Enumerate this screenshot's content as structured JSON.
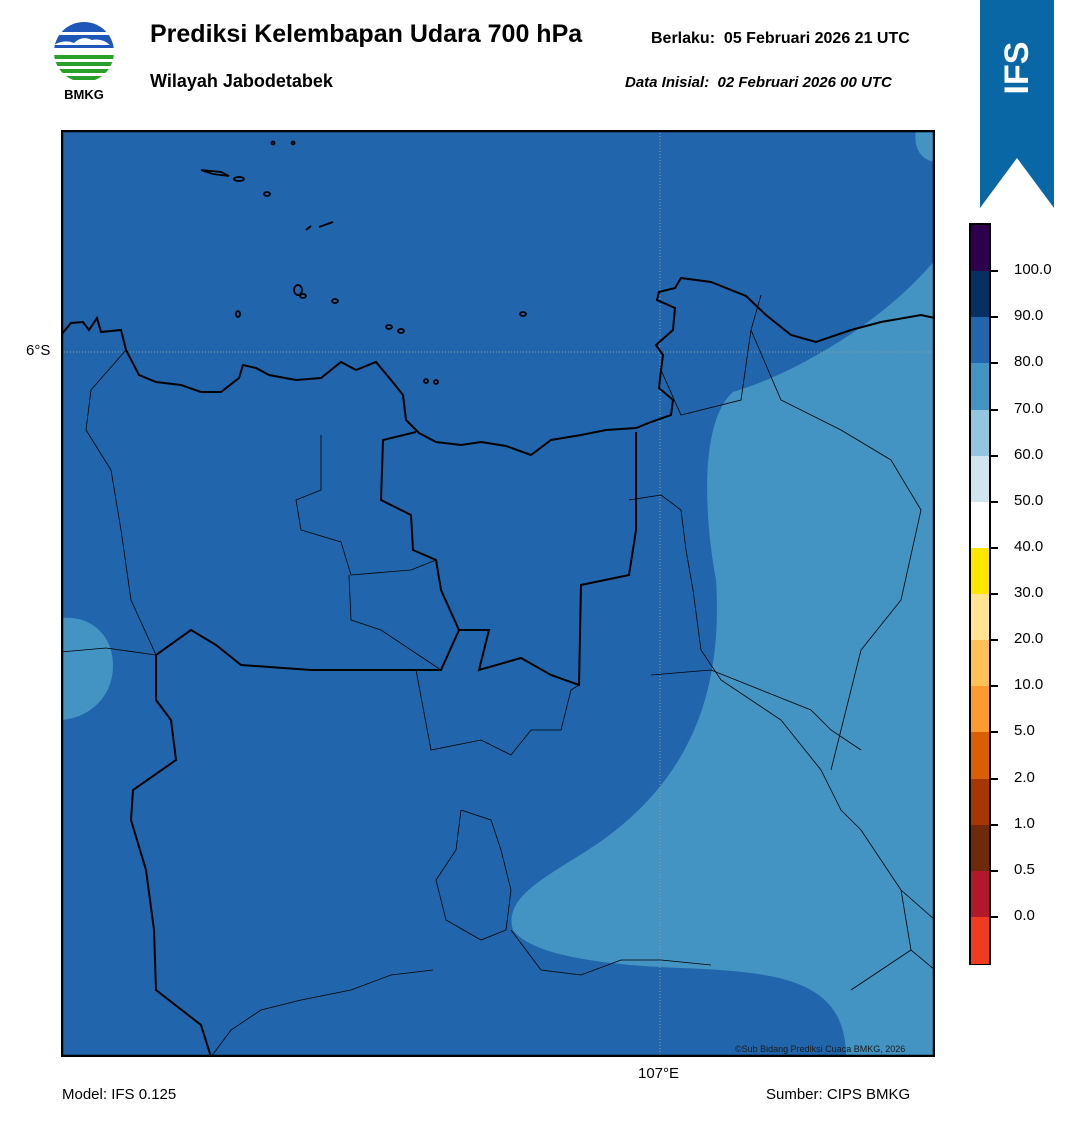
{
  "header": {
    "title": "Prediksi Kelembapan Udara 700 hPa",
    "subtitle": "Wilayah Jabodetabek",
    "valid_label": "Berlaku:",
    "valid_time": "05 Februari 2026 21 UTC",
    "init_label": "Data Inisial:",
    "init_time": "02 Februari 2026 00 UTC"
  },
  "logo": {
    "text": "BMKG"
  },
  "ribbon": {
    "text": "IFS",
    "color": "#0a67a6"
  },
  "map": {
    "lat_label": "6°S",
    "lon_label": "107°E",
    "credit": "©Sub Bidang Prediksi Cuaca BMKG, 2026",
    "fields": {
      "band_80_90_color": "#2166ac",
      "band_70_80_color": "#4393c3"
    }
  },
  "footer": {
    "model": "Model: IFS 0.125",
    "source": "Sumber: CIPS BMKG"
  },
  "colorbar": {
    "colors_top_to_bottom": [
      "#2d004b",
      "#053061",
      "#2166ac",
      "#4393c3",
      "#92c5de",
      "#d1e5f0",
      "#ffffff",
      "#ffe600",
      "#ffe38f",
      "#ffc156",
      "#ff9b2e",
      "#d95f02",
      "#a63603",
      "#6e2a0b",
      "#b2182b",
      "#f03b20"
    ],
    "labels_top_to_bottom": [
      "100.0",
      "90.0",
      "80.0",
      "70.0",
      "60.0",
      "50.0",
      "40.0",
      "30.0",
      "20.0",
      "10.0",
      "5.0",
      "2.0",
      "1.0",
      "0.5",
      "0.0"
    ]
  }
}
